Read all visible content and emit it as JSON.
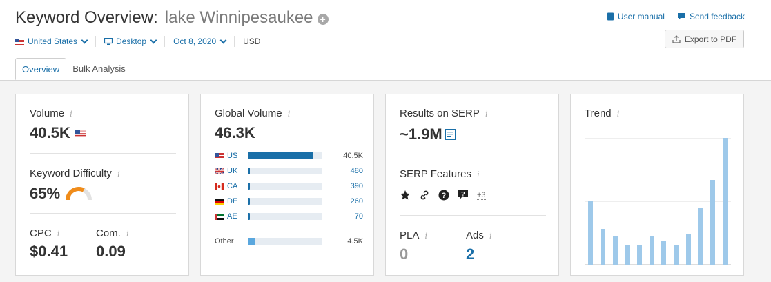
{
  "header": {
    "title": "Keyword Overview:",
    "keyword": "lake Winnipesaukee",
    "user_manual": "User manual",
    "send_feedback": "Send feedback",
    "export_label": "Export to PDF"
  },
  "filters": {
    "country": "United States",
    "device": "Desktop",
    "date": "Oct 8, 2020",
    "currency": "USD"
  },
  "tabs": [
    "Overview",
    "Bulk Analysis"
  ],
  "volume": {
    "title": "Volume",
    "value": "40.5K",
    "kd_title": "Keyword Difficulty",
    "kd_value": "65%",
    "kd_percent": 65,
    "cpc_title": "CPC",
    "cpc_value": "$0.41",
    "com_title": "Com.",
    "com_value": "0.09"
  },
  "global_volume": {
    "title": "Global Volume",
    "value": "46.3K",
    "rows": [
      {
        "code": "US",
        "value": "40.5K",
        "fraction": 0.88
      },
      {
        "code": "UK",
        "value": "480",
        "fraction": 0.02
      },
      {
        "code": "CA",
        "value": "390",
        "fraction": 0.02
      },
      {
        "code": "DE",
        "value": "260",
        "fraction": 0.015
      },
      {
        "code": "AE",
        "value": "70",
        "fraction": 0.01
      }
    ],
    "other_label": "Other",
    "other_value": "4.5K",
    "other_fraction": 0.1
  },
  "serp": {
    "title": "Results on SERP",
    "value": "~1.9M",
    "features_title": "SERP Features",
    "features_more": "+3",
    "features_icons": [
      "star-icon",
      "link-icon",
      "question-icon",
      "answer-icon"
    ],
    "pla_title": "PLA",
    "pla_value": "0",
    "ads_title": "Ads",
    "ads_value": "2"
  },
  "trend": {
    "title": "Trend",
    "values": [
      0.5,
      0.28,
      0.23,
      0.15,
      0.15,
      0.23,
      0.19,
      0.16,
      0.24,
      0.45,
      0.67,
      1.0
    ]
  },
  "colors": {
    "accent": "#1a6fa8",
    "bar": "#9ec9ea",
    "kd_arc": "#f08c1a"
  }
}
